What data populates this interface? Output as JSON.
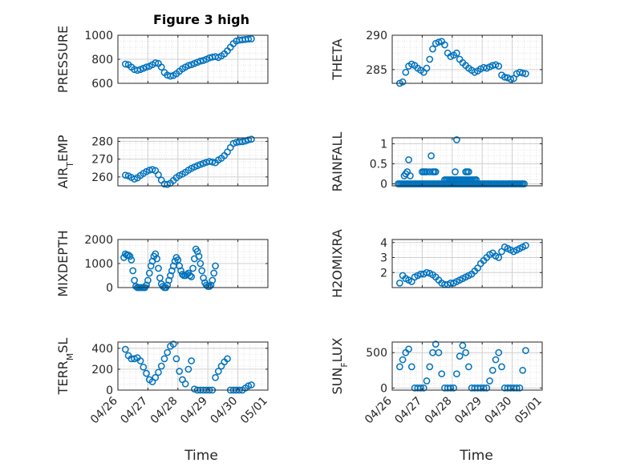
{
  "figure": {
    "title": "Figure 3 high",
    "xlabel": "Time",
    "marker_color": "#0072BD",
    "x_ticks": [
      "04/26",
      "04/27",
      "04/28",
      "04/29",
      "04/30",
      "05/01"
    ]
  },
  "chart_data": [
    {
      "type": "scatter",
      "ylabel": "PRESSURE",
      "ylim": [
        600,
        1000
      ],
      "yticks": [
        600,
        800,
        1000
      ],
      "xlim": [
        "04/26",
        "05/01"
      ],
      "grid": true,
      "x": [
        0.25,
        0.35,
        0.45,
        0.55,
        0.65,
        0.75,
        0.85,
        0.95,
        1.05,
        1.15,
        1.25,
        1.35,
        1.45,
        1.55,
        1.65,
        1.75,
        1.85,
        1.95,
        2.05,
        2.15,
        2.25,
        2.35,
        2.45,
        2.55,
        2.65,
        2.75,
        2.85,
        2.95,
        3.05,
        3.15,
        3.25,
        3.35,
        3.45,
        3.55,
        3.65,
        3.75,
        3.85,
        3.95,
        4.05,
        4.15,
        4.25,
        4.35,
        4.45
      ],
      "y": [
        760,
        755,
        735,
        715,
        708,
        715,
        725,
        735,
        742,
        755,
        770,
        765,
        735,
        690,
        668,
        660,
        665,
        680,
        700,
        720,
        735,
        748,
        755,
        765,
        775,
        785,
        790,
        800,
        812,
        818,
        822,
        815,
        828,
        845,
        870,
        900,
        930,
        952,
        960,
        962,
        965,
        968,
        970
      ]
    },
    {
      "type": "scatter",
      "ylabel": "THETA",
      "ylim": [
        283,
        290
      ],
      "yticks": [
        285,
        290
      ],
      "xlim": [
        "04/26",
        "05/01"
      ],
      "grid": true,
      "x": [
        0.25,
        0.35,
        0.45,
        0.55,
        0.65,
        0.75,
        0.85,
        0.95,
        1.05,
        1.15,
        1.25,
        1.35,
        1.45,
        1.55,
        1.65,
        1.75,
        1.85,
        1.95,
        2.05,
        2.15,
        2.25,
        2.35,
        2.45,
        2.55,
        2.65,
        2.75,
        2.85,
        2.95,
        3.05,
        3.15,
        3.25,
        3.35,
        3.45,
        3.55,
        3.65,
        3.75,
        3.85,
        3.95,
        4.05,
        4.15,
        4.25,
        4.35,
        4.45
      ],
      "y": [
        283.0,
        283.2,
        284.6,
        285.5,
        285.8,
        285.6,
        285.2,
        284.9,
        284.6,
        285.2,
        286.5,
        288.0,
        288.8,
        289.0,
        289.1,
        288.6,
        287.4,
        286.9,
        287.1,
        287.4,
        286.5,
        286.0,
        285.6,
        285.2,
        284.9,
        284.6,
        284.8,
        285.1,
        285.3,
        285.2,
        285.4,
        285.6,
        285.7,
        285.5,
        284.2,
        283.9,
        283.8,
        283.6,
        283.7,
        284.4,
        284.6,
        284.5,
        284.4
      ]
    },
    {
      "type": "scatter",
      "ylabel": "AIR_TEMP",
      "ylim": [
        255,
        282
      ],
      "yticks": [
        260,
        270,
        280
      ],
      "xlim": [
        "04/26",
        "05/01"
      ],
      "grid": true,
      "x": [
        0.25,
        0.35,
        0.45,
        0.55,
        0.65,
        0.75,
        0.85,
        0.95,
        1.05,
        1.15,
        1.25,
        1.35,
        1.45,
        1.55,
        1.65,
        1.75,
        1.85,
        1.95,
        2.05,
        2.15,
        2.25,
        2.35,
        2.45,
        2.55,
        2.65,
        2.75,
        2.85,
        2.95,
        3.05,
        3.15,
        3.25,
        3.35,
        3.45,
        3.55,
        3.65,
        3.75,
        3.85,
        3.95,
        4.05,
        4.15,
        4.25,
        4.35,
        4.45
      ],
      "y": [
        261.0,
        260.6,
        259.7,
        258.8,
        259.5,
        260.8,
        262.0,
        263.0,
        263.8,
        264.2,
        263.6,
        261.2,
        258.2,
        256.0,
        255.8,
        256.5,
        258.0,
        259.6,
        260.8,
        261.6,
        262.6,
        263.8,
        264.8,
        265.6,
        266.3,
        267.0,
        267.6,
        268.2,
        268.7,
        268.4,
        268.0,
        269.5,
        270.5,
        272.0,
        274.0,
        276.5,
        278.8,
        279.4,
        279.7,
        279.8,
        280.2,
        280.8,
        281.2
      ]
    },
    {
      "type": "scatter",
      "ylabel": "RAINFALL",
      "ylim": [
        -0.05,
        1.15
      ],
      "yticks": [
        0,
        0.5,
        1
      ],
      "xlim": [
        "04/26",
        "05/01"
      ],
      "grid": true,
      "x": [
        0.2,
        0.25,
        0.3,
        0.35,
        0.4,
        0.45,
        0.5,
        0.55,
        0.6,
        0.65,
        0.7,
        0.75,
        0.8,
        0.85,
        0.9,
        0.95,
        1.0,
        1.05,
        1.1,
        1.15,
        1.2,
        1.25,
        1.3,
        1.35,
        1.4,
        1.45,
        1.5,
        1.55,
        1.6,
        1.65,
        1.7,
        1.75,
        1.8,
        1.85,
        1.9,
        1.95,
        2.0,
        2.05,
        2.1,
        2.15,
        2.2,
        2.25,
        2.3,
        2.35,
        2.4,
        2.45,
        2.5,
        2.55,
        2.6,
        2.65,
        2.7,
        2.75,
        2.8,
        2.85,
        2.9,
        2.95,
        3.0,
        3.05,
        3.1,
        3.15,
        3.2,
        3.25,
        3.3,
        3.35,
        3.4,
        3.45,
        3.5,
        3.55,
        3.6,
        3.65,
        3.7,
        3.75,
        3.8,
        3.85,
        3.9,
        3.95,
        4.0,
        4.05,
        4.1,
        4.15,
        4.2,
        4.25,
        4.3,
        4.35,
        4.4,
        1.0,
        1.05,
        1.1,
        1.15,
        1.35,
        0.4,
        0.45,
        0.5,
        0.55,
        0.6,
        1.25,
        1.3,
        1.4,
        1.45,
        1.75,
        1.8,
        1.85,
        1.9,
        1.95,
        2.0,
        2.05,
        2.1,
        2.15,
        2.2,
        2.25,
        2.3,
        2.35,
        2.4,
        2.45,
        2.5,
        2.55,
        2.6,
        2.65,
        2.7,
        2.75,
        2.8
      ],
      "y": [
        0,
        0,
        0,
        0,
        0,
        0,
        0,
        0,
        0,
        0,
        0,
        0,
        0,
        0,
        0,
        0,
        0,
        0,
        0,
        0,
        0,
        0,
        0,
        0,
        0,
        0,
        0,
        0,
        0,
        0,
        0,
        0,
        0,
        0,
        0,
        0,
        0,
        0,
        0,
        0,
        0,
        0,
        0,
        0,
        0,
        0,
        0,
        0,
        0,
        0,
        0,
        0,
        0,
        0,
        0,
        0,
        0,
        0,
        0,
        0,
        0,
        0,
        0,
        0,
        0,
        0,
        0,
        0,
        0,
        0,
        0,
        0,
        0,
        0,
        0,
        0,
        0,
        0,
        0,
        0,
        0,
        0,
        0,
        0,
        0,
        0.3,
        0.3,
        0.3,
        0.3,
        0.3,
        0.2,
        0.25,
        0.3,
        0.6,
        0.2,
        0.3,
        0.7,
        0.3,
        0.3,
        0.1,
        0.1,
        0.1,
        0.1,
        0.1,
        0.1,
        0.1,
        0.1,
        0.1,
        0.1,
        0.1,
        0.1,
        0.1,
        0.1,
        0.1,
        0.1,
        0.1,
        0.1,
        0.1,
        0.1,
        0.1,
        0.1
      ],
      "note_points": [
        [
          2.15,
          1.1
        ],
        [
          2.1,
          0.3
        ],
        [
          2.45,
          0.3
        ],
        [
          2.5,
          0.3
        ],
        [
          2.55,
          0.3
        ],
        [
          2.8,
          0.1
        ]
      ]
    },
    {
      "type": "scatter",
      "ylabel": "MIXDEPTH",
      "ylim": [
        0,
        2000
      ],
      "yticks": [
        0,
        1000,
        2000
      ],
      "xlim": [
        "04/26",
        "05/01"
      ],
      "grid": true,
      "x": [
        0.2,
        0.25,
        0.3,
        0.35,
        0.4,
        0.45,
        0.5,
        0.55,
        0.6,
        0.65,
        0.7,
        0.75,
        0.8,
        0.85,
        0.9,
        0.95,
        1.0,
        1.05,
        1.1,
        1.15,
        1.2,
        1.25,
        1.3,
        1.35,
        1.4,
        1.45,
        1.5,
        1.55,
        1.6,
        1.65,
        1.7,
        1.75,
        1.8,
        1.85,
        1.9,
        1.95,
        2.0,
        2.05,
        2.1,
        2.15,
        2.2,
        2.25,
        2.3,
        2.35,
        2.4,
        2.45,
        2.5,
        2.55,
        2.6,
        2.65,
        2.7,
        2.75,
        2.8,
        2.85,
        2.9,
        2.95,
        3.0,
        3.05,
        3.1,
        3.15,
        3.2,
        3.25,
        3.3,
        3.35,
        3.4,
        3.45,
        3.5,
        3.55,
        3.6,
        3.65,
        3.7,
        3.75,
        3.8,
        3.85,
        3.9,
        3.95,
        4.0,
        4.05,
        4.1,
        4.15,
        4.2,
        4.25,
        4.3,
        4.35,
        4.4
      ],
      "y": [
        1250,
        1400,
        1350,
        1350,
        1300,
        1150,
        700,
        300,
        50,
        0,
        0,
        0,
        0,
        0,
        0,
        100,
        300,
        600,
        900,
        1100,
        1300,
        1400,
        1200,
        800,
        400,
        150,
        50,
        0,
        0,
        100,
        300,
        500,
        700,
        900,
        1100,
        1250,
        1150,
        900,
        700,
        550,
        500,
        500,
        550,
        600,
        500,
        450,
        800,
        1200,
        1600,
        1500,
        1300,
        1000,
        700,
        400,
        200,
        100,
        50,
        50,
        100,
        300,
        600,
        900,
        0,
        0,
        0,
        0,
        0,
        0,
        0,
        0,
        0,
        0,
        0,
        0,
        0,
        0,
        0,
        0,
        0,
        0,
        0,
        0,
        0,
        0,
        0
      ],
      "visible_count": 62
    },
    {
      "type": "scatter",
      "ylabel": "H2OMIXRA",
      "ylim": [
        1,
        4.2
      ],
      "yticks": [
        2,
        3,
        4
      ],
      "xlim": [
        "04/26",
        "05/01"
      ],
      "grid": true,
      "x": [
        0.25,
        0.35,
        0.45,
        0.55,
        0.65,
        0.75,
        0.85,
        0.95,
        1.05,
        1.15,
        1.25,
        1.35,
        1.45,
        1.55,
        1.65,
        1.75,
        1.85,
        1.95,
        2.05,
        2.15,
        2.25,
        2.35,
        2.45,
        2.55,
        2.65,
        2.75,
        2.85,
        2.95,
        3.05,
        3.15,
        3.25,
        3.35,
        3.45,
        3.55,
        3.65,
        3.75,
        3.85,
        3.95,
        4.05,
        4.15,
        4.25,
        4.35,
        4.45
      ],
      "y": [
        1.3,
        1.8,
        1.6,
        1.5,
        1.4,
        1.7,
        1.8,
        1.9,
        1.9,
        2.0,
        1.95,
        1.85,
        1.7,
        1.5,
        1.3,
        1.2,
        1.2,
        1.3,
        1.3,
        1.4,
        1.5,
        1.6,
        1.7,
        1.8,
        1.9,
        2.1,
        2.3,
        2.6,
        2.8,
        3.0,
        3.2,
        3.3,
        3.1,
        3.0,
        3.4,
        3.7,
        3.6,
        3.5,
        3.4,
        3.5,
        3.6,
        3.7,
        3.8
      ]
    },
    {
      "type": "scatter",
      "ylabel": "TERR_MSL",
      "ylim": [
        0,
        460
      ],
      "yticks": [
        0,
        200,
        400
      ],
      "xlim": [
        "04/26",
        "05/01"
      ],
      "grid": true,
      "x": [
        0.25,
        0.35,
        0.45,
        0.55,
        0.65,
        0.75,
        0.85,
        0.95,
        1.05,
        1.15,
        1.25,
        1.35,
        1.45,
        1.55,
        1.65,
        1.75,
        1.85,
        1.95,
        2.05,
        2.15,
        2.25,
        2.35,
        2.45,
        2.55,
        2.65,
        2.75,
        2.85,
        2.95,
        3.05,
        3.15,
        3.25,
        3.35,
        3.45,
        3.55,
        3.65,
        3.75,
        3.85,
        3.95,
        4.05,
        4.15,
        4.25,
        4.35,
        4.45
      ],
      "y": [
        390,
        330,
        300,
        300,
        310,
        280,
        220,
        160,
        100,
        80,
        120,
        170,
        230,
        300,
        360,
        420,
        440,
        300,
        180,
        100,
        60,
        200,
        280,
        10,
        0,
        0,
        0,
        0,
        0,
        0,
        120,
        180,
        230,
        270,
        300,
        0,
        0,
        0,
        0,
        0,
        20,
        40,
        50
      ]
    },
    {
      "type": "scatter",
      "ylabel": "SUN_FLUX",
      "ylim": [
        -30,
        650
      ],
      "yticks": [
        0,
        500
      ],
      "xlim": [
        "04/26",
        "05/01"
      ],
      "grid": true,
      "x": [
        0.25,
        0.35,
        0.45,
        0.55,
        0.65,
        0.75,
        0.85,
        0.95,
        1.05,
        1.15,
        1.25,
        1.35,
        1.45,
        1.55,
        1.65,
        1.75,
        1.85,
        1.95,
        2.05,
        2.15,
        2.25,
        2.35,
        2.45,
        2.55,
        2.65,
        2.75,
        2.85,
        2.95,
        3.05,
        3.15,
        3.25,
        3.35,
        3.45,
        3.55,
        3.65,
        3.75,
        3.85,
        3.95,
        4.05,
        4.15,
        4.25,
        4.35,
        4.45
      ],
      "y": [
        300,
        400,
        500,
        550,
        300,
        0,
        0,
        0,
        0,
        100,
        300,
        500,
        620,
        500,
        200,
        0,
        0,
        0,
        0,
        200,
        450,
        600,
        500,
        300,
        0,
        0,
        0,
        0,
        0,
        0,
        100,
        250,
        400,
        500,
        300,
        0,
        0,
        0,
        0,
        0,
        0,
        250,
        530
      ]
    }
  ]
}
